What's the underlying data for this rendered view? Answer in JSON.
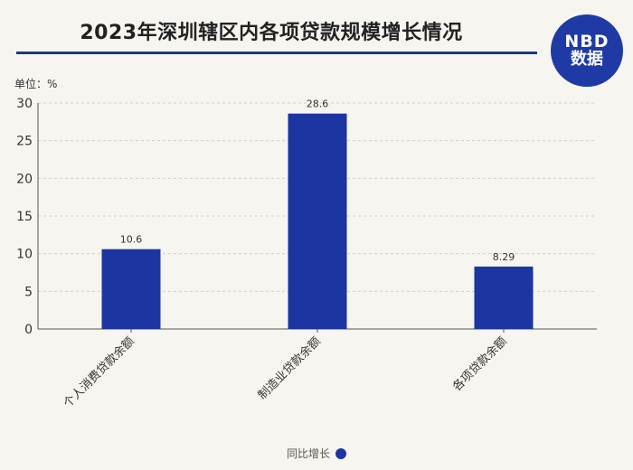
{
  "title": "2023年深圳辖区内各项贷款规模增长情况",
  "logo": {
    "line1": "NBD",
    "line2": "数据"
  },
  "unit_label": "单位：%",
  "chart_data": {
    "type": "bar",
    "title": "2023年深圳辖区内各项贷款规模增长情况",
    "categories": [
      "个人消费贷款余额",
      "制造业贷款余额",
      "各项贷款余额"
    ],
    "series": [
      {
        "name": "同比增长",
        "values": [
          10.6,
          28.6,
          8.29
        ],
        "labels": [
          "10.6",
          "28.6",
          "8.29"
        ]
      }
    ],
    "ylim": [
      0,
      30
    ],
    "yticks": [
      0,
      5,
      10,
      15,
      20,
      25,
      30
    ],
    "ylabel": "单位：%",
    "grid": true,
    "legend_position": "bottom",
    "colors": {
      "bar": "#1c35a0",
      "grid": "#cfcfcf",
      "axis": "#555555"
    }
  }
}
